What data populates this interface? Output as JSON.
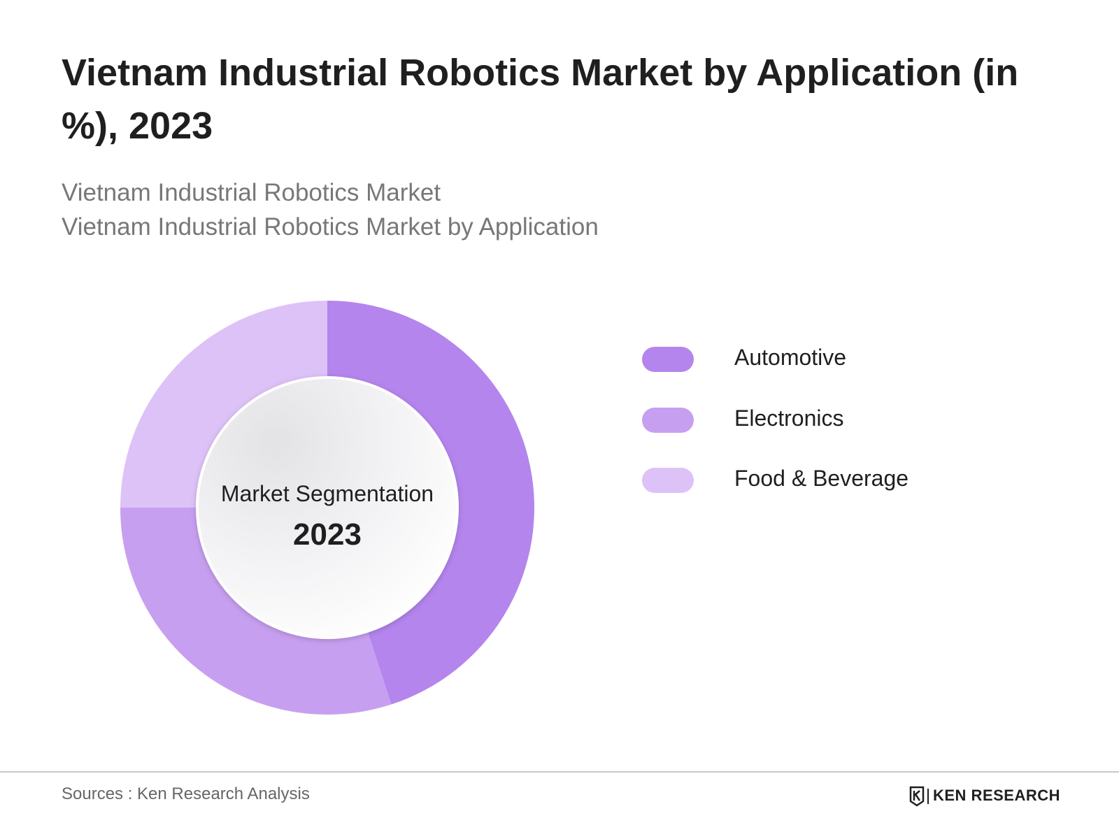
{
  "title": "Vietnam Industrial Robotics Market by Application (in %), 2023",
  "subtitle_line1": "Vietnam Industrial Robotics Market",
  "subtitle_line2": "Vietnam Industrial Robotics Market by Application",
  "center": {
    "label": "Market Segmentation",
    "year": "2023"
  },
  "footer": {
    "source": "Sources : Ken Research Analysis",
    "brand": "KEN RESEARCH"
  },
  "colors": {
    "automotive": "#b485ed",
    "electronics": "#c79ff0",
    "food_beverage": "#ddc2f8"
  },
  "chart_data": {
    "type": "pie",
    "style": "donut",
    "categories": [
      "Automotive",
      "Electronics",
      "Food & Beverage"
    ],
    "values": [
      45,
      30,
      25
    ],
    "unit": "%",
    "legend_position": "right"
  }
}
